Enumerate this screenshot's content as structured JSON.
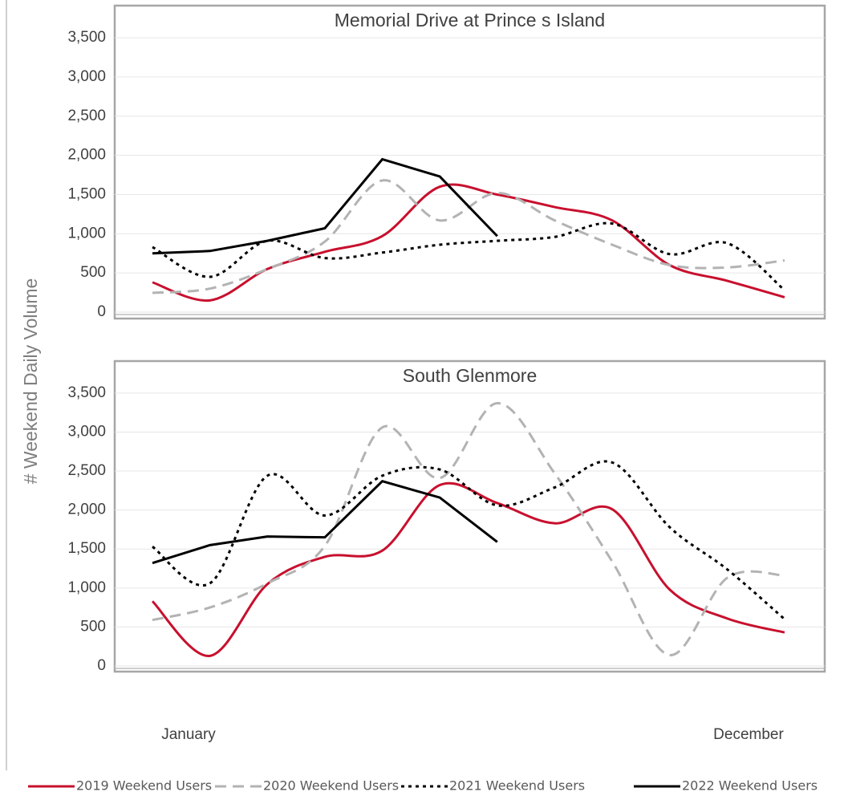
{
  "ylabel": "# Weekend Daily Volume",
  "chart_data": [
    {
      "type": "line",
      "title": "Memorial Drive at Prince s Island",
      "ylim": [
        0,
        3900
      ],
      "yticks": [
        0,
        {
          "value": 500,
          "label": "500"
        },
        {
          "value": 1000,
          "label": "1,000"
        },
        {
          "value": 1500,
          "label": "1,500"
        },
        {
          "value": 2000,
          "label": "2,000"
        },
        {
          "value": 2500,
          "label": "2,500"
        },
        {
          "value": 3000,
          "label": "3,000"
        },
        {
          "value": 3500,
          "label": "3,500"
        }
      ],
      "grid": true,
      "series": [
        {
          "name": "2019 Weekend Users",
          "color": "#c8102e",
          "dash": "solid",
          "smooth": true,
          "values": [
            380,
            150,
            550,
            770,
            970,
            1600,
            1500,
            1340,
            1170,
            600,
            400,
            190
          ]
        },
        {
          "name": "2020 Weekend Users",
          "color": "#b3b3b3",
          "dash": "dashed",
          "smooth": true,
          "values": [
            245,
            300,
            550,
            900,
            1680,
            1170,
            1520,
            1170,
            860,
            600,
            570,
            660
          ]
        },
        {
          "name": "2021 Weekend Users",
          "color": "#000000",
          "dash": "dotted",
          "smooth": true,
          "values": [
            830,
            450,
            910,
            690,
            760,
            860,
            910,
            960,
            1130,
            740,
            880,
            280
          ]
        },
        {
          "name": "2022 Weekend Users",
          "color": "#000000",
          "dash": "solid",
          "smooth": false,
          "values": [
            750,
            780,
            910,
            1070,
            1950,
            1730,
            970,
            null,
            null,
            null,
            null,
            null
          ]
        }
      ]
    },
    {
      "type": "line",
      "title": "South Glenmore",
      "categories": [
        "January",
        null,
        null,
        null,
        null,
        null,
        null,
        null,
        null,
        null,
        null,
        "December"
      ],
      "ylim": [
        0,
        3900
      ],
      "yticks": [
        0,
        {
          "value": 500,
          "label": "500"
        },
        {
          "value": 1000,
          "label": "1,000"
        },
        {
          "value": 1500,
          "label": "1,500"
        },
        {
          "value": 2000,
          "label": "2,000"
        },
        {
          "value": 2500,
          "label": "2,500"
        },
        {
          "value": 3000,
          "label": "3,000"
        },
        {
          "value": 3500,
          "label": "3,500"
        }
      ],
      "grid": true,
      "series": [
        {
          "name": "2019 Weekend Users",
          "color": "#c8102e",
          "dash": "solid",
          "smooth": true,
          "values": [
            830,
            130,
            1050,
            1400,
            1480,
            2320,
            2090,
            1830,
            2010,
            980,
            610,
            430
          ]
        },
        {
          "name": "2020 Weekend Users",
          "color": "#b3b3b3",
          "dash": "dashed",
          "smooth": true,
          "values": [
            590,
            750,
            1060,
            1540,
            3060,
            2410,
            3370,
            2470,
            1340,
            140,
            1130,
            1160
          ]
        },
        {
          "name": "2021 Weekend Users",
          "color": "#000000",
          "dash": "dotted",
          "smooth": true,
          "values": [
            1530,
            1060,
            2440,
            1930,
            2440,
            2520,
            2060,
            2290,
            2610,
            1780,
            1240,
            600
          ]
        },
        {
          "name": "2022 Weekend Users",
          "color": "#000000",
          "dash": "solid",
          "smooth": false,
          "values": [
            1320,
            1550,
            1660,
            1650,
            2370,
            2160,
            1590,
            null,
            null,
            null,
            null,
            null
          ]
        }
      ]
    }
  ]
}
